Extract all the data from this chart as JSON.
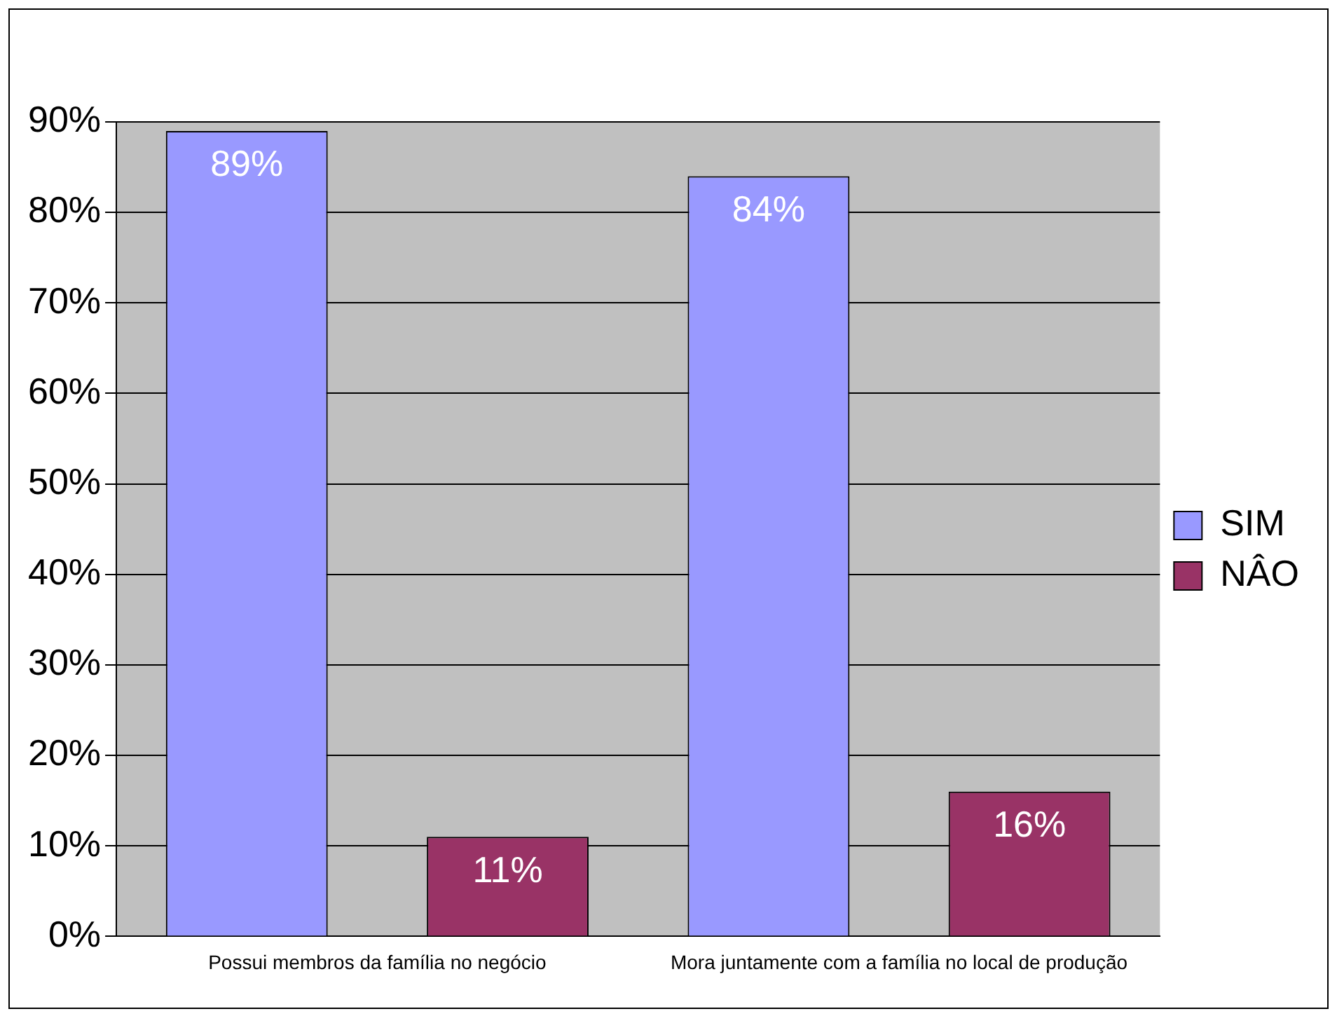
{
  "chart_data": {
    "type": "bar",
    "categories": [
      "Possui membros da família no negócio",
      "Mora juntamente com a família no local de produção"
    ],
    "series": [
      {
        "name": "SIM",
        "color": "#9999ff",
        "values": [
          89,
          84
        ],
        "value_labels": [
          "89%",
          "84%"
        ]
      },
      {
        "name": "NÂO",
        "color": "#993366",
        "values": [
          11,
          16
        ],
        "value_labels": [
          "11%",
          "16%"
        ]
      }
    ],
    "ylim": [
      0,
      90
    ],
    "yticks": [
      {
        "value": 0,
        "label": "0%"
      },
      {
        "value": 10,
        "label": "10%"
      },
      {
        "value": 20,
        "label": "20%"
      },
      {
        "value": 30,
        "label": "30%"
      },
      {
        "value": 40,
        "label": "40%"
      },
      {
        "value": 50,
        "label": "50%"
      },
      {
        "value": 60,
        "label": "60%"
      },
      {
        "value": 70,
        "label": "70%"
      },
      {
        "value": 80,
        "label": "80%"
      },
      {
        "value": 90,
        "label": "90%"
      }
    ],
    "grid": "y",
    "legend": "right"
  }
}
